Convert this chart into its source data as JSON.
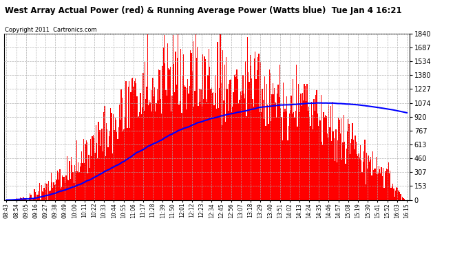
{
  "title": "West Array Actual Power (red) & Running Average Power (Watts blue)  Tue Jan 4 16:21",
  "copyright": "Copyright 2011  Cartronics.com",
  "ymax": 1840.3,
  "ymin": 0.0,
  "ytick_values": [
    0.0,
    153.4,
    306.7,
    460.1,
    613.4,
    766.8,
    920.1,
    1073.5,
    1226.8,
    1380.2,
    1533.6,
    1686.9,
    1840.3
  ],
  "bar_color": "#FF0000",
  "avg_color": "#0000FF",
  "bg_color": "#FFFFFF",
  "grid_color": "#AAAAAA",
  "time_labels": [
    "08:43",
    "08:54",
    "09:05",
    "09:16",
    "09:27",
    "09:38",
    "09:49",
    "10:00",
    "10:11",
    "10:22",
    "10:33",
    "10:44",
    "10:55",
    "11:06",
    "11:17",
    "11:28",
    "11:39",
    "11:50",
    "12:01",
    "12:12",
    "12:23",
    "12:34",
    "12:45",
    "12:56",
    "13:07",
    "13:18",
    "13:29",
    "13:40",
    "13:51",
    "14:02",
    "14:13",
    "14:24",
    "14:35",
    "14:46",
    "14:57",
    "15:08",
    "15:19",
    "15:30",
    "15:41",
    "15:52",
    "16:03",
    "16:15"
  ]
}
